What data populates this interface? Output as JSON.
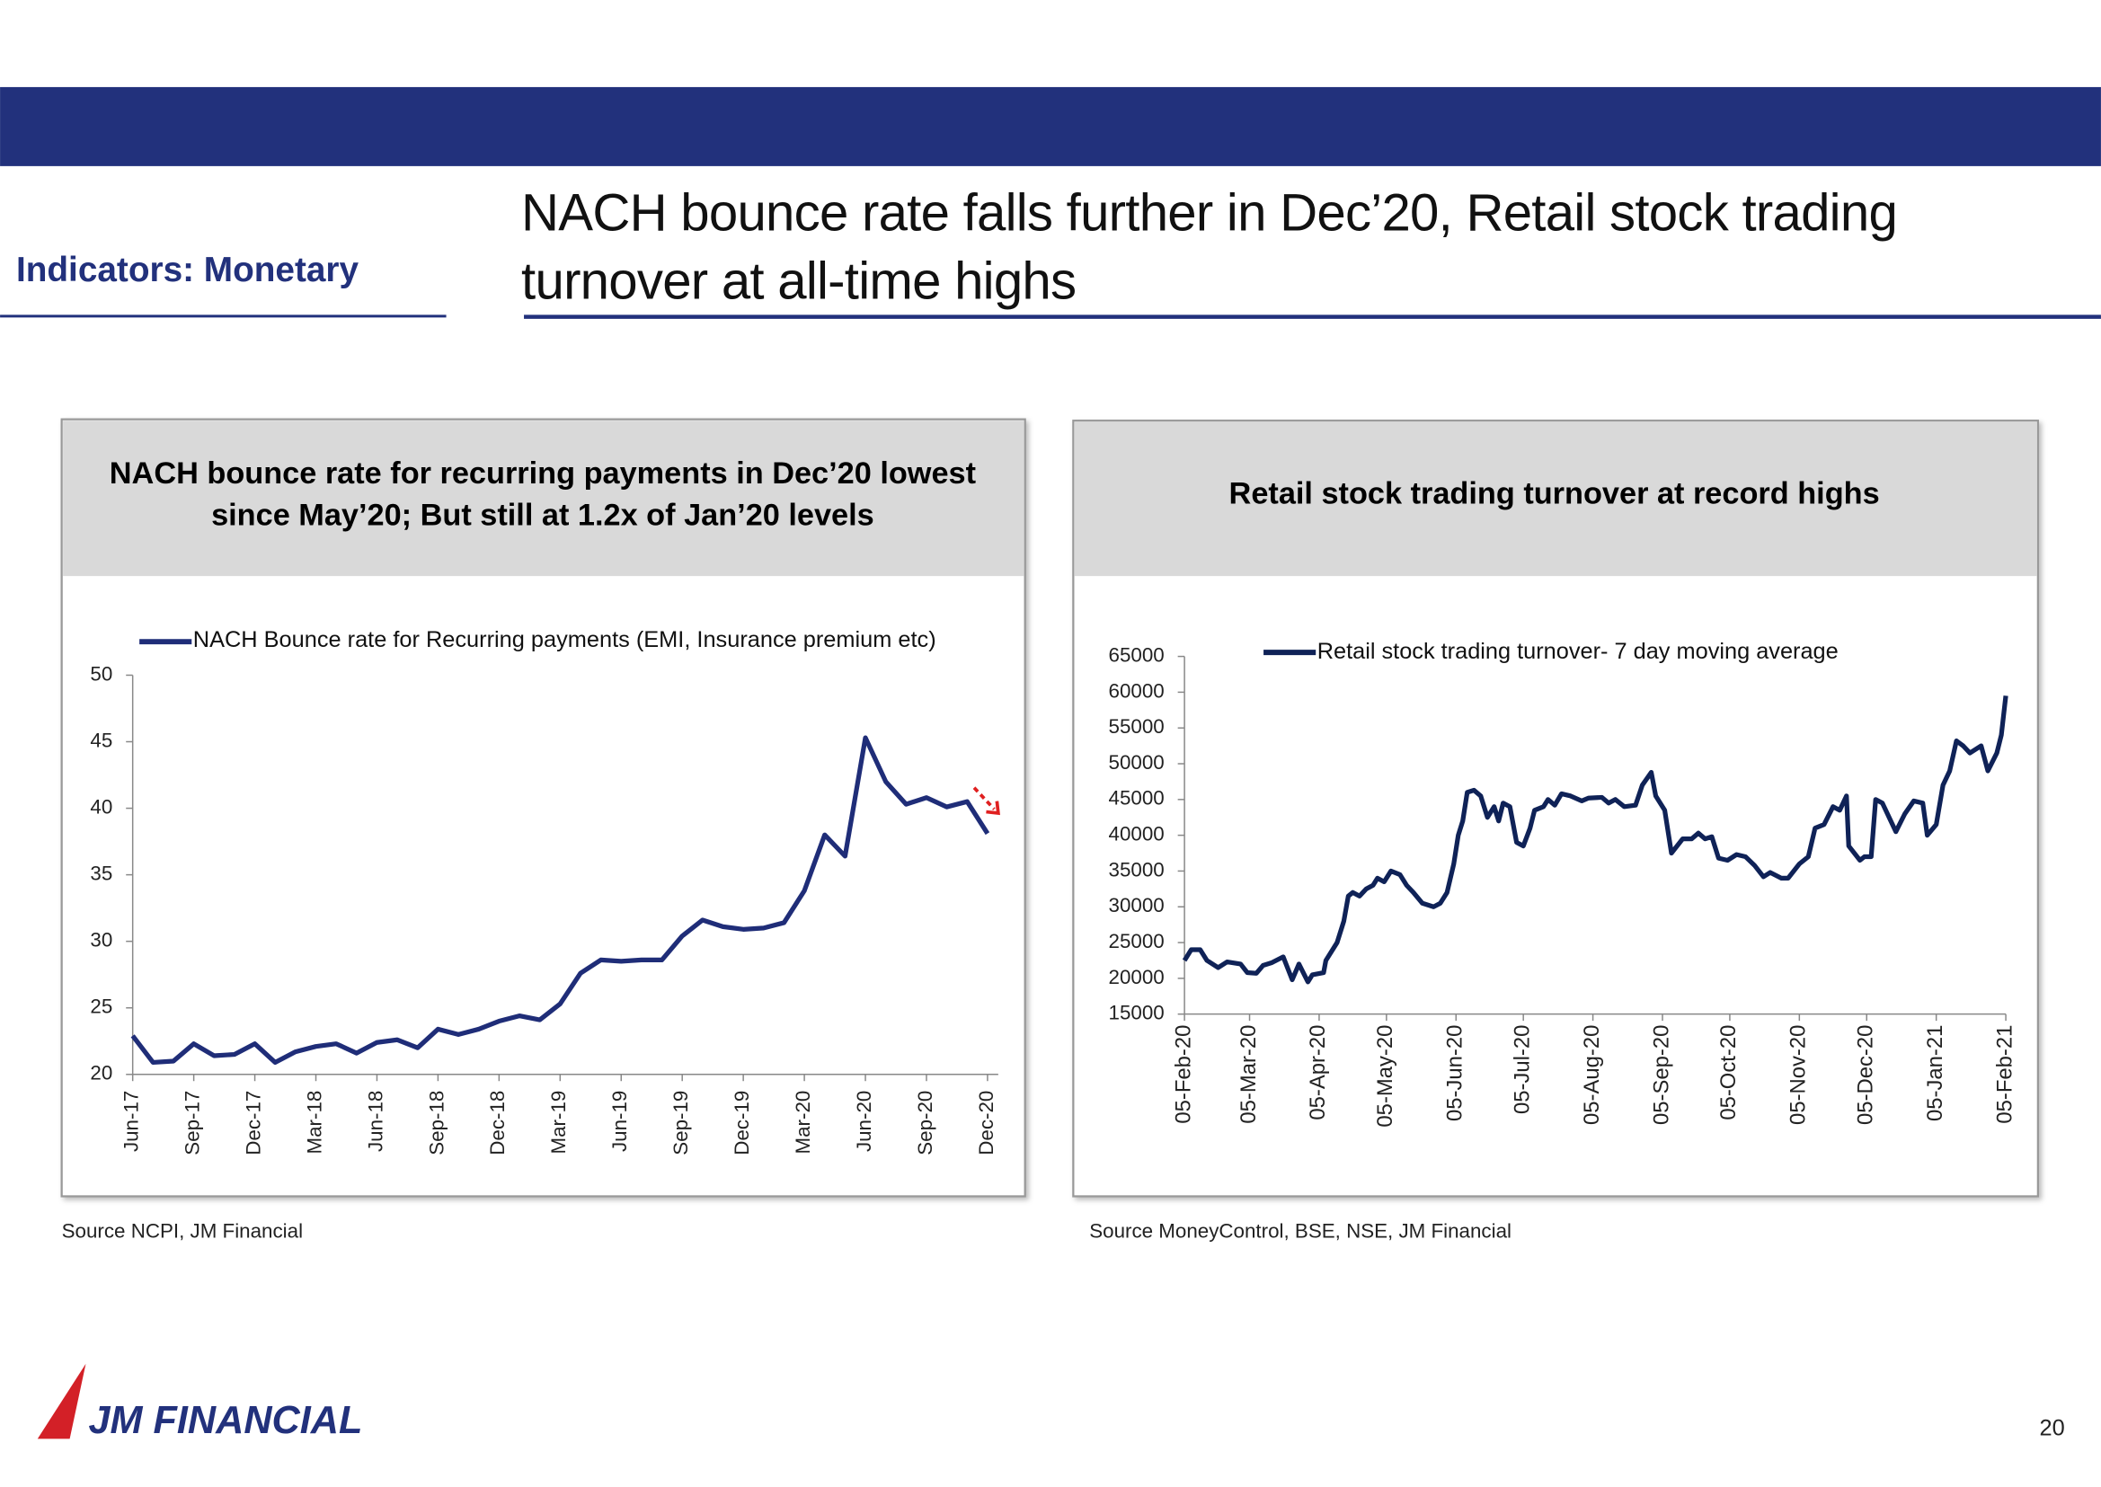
{
  "header": {
    "section": "Indicators: Monetary",
    "title": "NACH bounce rate falls further in Dec’20, Retail stock trading turnover at all-time highs"
  },
  "chart_data": [
    {
      "type": "line",
      "title": "NACH bounce rate for recurring payments in Dec’20 lowest since May’20; But still at 1.2x of Jan’20 levels",
      "categories": [
        "Jun-17",
        null,
        null,
        "Sep-17",
        null,
        null,
        "Dec-17",
        null,
        null,
        "Mar-18",
        null,
        null,
        "Jun-18",
        null,
        null,
        "Sep-18",
        null,
        null,
        "Dec-18",
        null,
        null,
        "Mar-19",
        null,
        null,
        "Jun-19",
        null,
        null,
        "Sep-19",
        null,
        null,
        "Dec-19",
        null,
        null,
        "Mar-20",
        null,
        null,
        "Jun-20",
        null,
        null,
        "Sep-20",
        null,
        null,
        "Dec-20"
      ],
      "series": [
        {
          "name": "NACH Bounce rate for Recurring payments (EMI, Insurance premium etc)",
          "color": "#1f2d78",
          "values": [
            22.9,
            20.9,
            21.0,
            22.3,
            21.4,
            21.5,
            22.3,
            20.9,
            21.7,
            22.1,
            22.3,
            21.6,
            22.4,
            22.6,
            22.0,
            23.4,
            23.0,
            23.4,
            24.0,
            24.4,
            24.1,
            25.3,
            27.6,
            28.6,
            28.5,
            28.6,
            28.6,
            30.4,
            31.6,
            31.1,
            30.9,
            31.0,
            31.4,
            33.8,
            38.0,
            36.4,
            45.3,
            42.0,
            40.3,
            40.8,
            40.1,
            40.5,
            38.1
          ]
        }
      ],
      "ylim": [
        20,
        50
      ],
      "yticks": [
        20,
        25,
        30,
        35,
        40,
        45,
        50
      ],
      "source": "Source NCPI, JM Financial"
    },
    {
      "type": "line",
      "title": "Retail stock trading turnover at record highs",
      "x": [
        "2020-02-05",
        "2020-02-08",
        "2020-02-12",
        "2020-02-15",
        "2020-02-20",
        "2020-02-24",
        "2020-03-01",
        "2020-03-04",
        "2020-03-08",
        "2020-03-11",
        "2020-03-15",
        "2020-03-20",
        "2020-03-24",
        "2020-03-27",
        "2020-03-31",
        "2020-04-02",
        "2020-04-07",
        "2020-04-08",
        "2020-04-13",
        "2020-04-16",
        "2020-04-18",
        "2020-04-20",
        "2020-04-23",
        "2020-04-26",
        "2020-04-29",
        "2020-05-01",
        "2020-05-04",
        "2020-05-07",
        "2020-05-11",
        "2020-05-14",
        "2020-05-17",
        "2020-05-21",
        "2020-05-26",
        "2020-05-29",
        "2020-06-01",
        "2020-06-04",
        "2020-06-06",
        "2020-06-08",
        "2020-06-10",
        "2020-06-13",
        "2020-06-16",
        "2020-06-19",
        "2020-06-22",
        "2020-06-24",
        "2020-06-26",
        "2020-06-29",
        "2020-07-02",
        "2020-07-05",
        "2020-07-08",
        "2020-07-10",
        "2020-07-14",
        "2020-07-16",
        "2020-07-19",
        "2020-07-22",
        "2020-07-26",
        "2020-07-31",
        "2020-08-03",
        "2020-08-09",
        "2020-08-12",
        "2020-08-15",
        "2020-08-19",
        "2020-08-24",
        "2020-08-27",
        "2020-08-31",
        "2020-09-02",
        "2020-09-06",
        "2020-09-09",
        "2020-09-14",
        "2020-09-18",
        "2020-09-21",
        "2020-09-24",
        "2020-09-27",
        "2020-09-30",
        "2020-10-04",
        "2020-10-08",
        "2020-10-12",
        "2020-10-16",
        "2020-10-20",
        "2020-10-23",
        "2020-10-28",
        "2020-10-31",
        "2020-11-05",
        "2020-11-09",
        "2020-11-12",
        "2020-11-16",
        "2020-11-20",
        "2020-11-23",
        "2020-11-26",
        "2020-11-27",
        "2020-12-02",
        "2020-12-04",
        "2020-12-07",
        "2020-12-09",
        "2020-12-12",
        "2020-12-15",
        "2020-12-18",
        "2020-12-22",
        "2020-12-26",
        "2020-12-30",
        "2021-01-01",
        "2021-01-05",
        "2021-01-08",
        "2021-01-11",
        "2021-01-14",
        "2021-01-17",
        "2021-01-20",
        "2021-01-25",
        "2021-01-28",
        "2021-02-01",
        "2021-02-03",
        "2021-02-05"
      ],
      "series": [
        {
          "name": "Retail stock trading turnover- 7 day moving average",
          "color": "#0f2257",
          "values": [
            22500,
            24000,
            24000,
            22500,
            21500,
            22300,
            22000,
            20800,
            20700,
            21800,
            22200,
            23000,
            19800,
            22000,
            19500,
            20500,
            20800,
            22500,
            25000,
            28000,
            31500,
            32000,
            31500,
            32500,
            33000,
            34000,
            33500,
            35000,
            34500,
            33000,
            32000,
            30500,
            30000,
            30500,
            32000,
            36000,
            40000,
            42000,
            46000,
            46300,
            45500,
            42500,
            44000,
            42000,
            44500,
            44000,
            39000,
            38500,
            41000,
            43500,
            44000,
            45000,
            44200,
            45800,
            45500,
            44800,
            45200,
            45300,
            44500,
            45000,
            44000,
            44200,
            47000,
            48800,
            45500,
            43500,
            37500,
            39500,
            39500,
            40300,
            39500,
            39800,
            36800,
            36500,
            37300,
            37000,
            35800,
            34200,
            34800,
            34000,
            34000,
            36000,
            37000,
            41000,
            41500,
            44000,
            43500,
            45500,
            38500,
            36500,
            37000,
            37000,
            45000,
            44500,
            42500,
            40500,
            43000,
            44800,
            44500,
            40000,
            41500,
            47000,
            49000,
            53200,
            52500,
            51500,
            52500,
            49000,
            51500,
            54000,
            59500
          ]
        }
      ],
      "xlim": [
        "2020-02-05",
        "2021-02-05"
      ],
      "xticks": [
        {
          "value": "2020-02-05",
          "label": "05-Feb-20"
        },
        {
          "value": "2020-03-05",
          "label": "05-Mar-20"
        },
        {
          "value": "2020-04-05",
          "label": "05-Apr-20"
        },
        {
          "value": "2020-05-05",
          "label": "05-May-20"
        },
        {
          "value": "2020-06-05",
          "label": "05-Jun-20"
        },
        {
          "value": "2020-07-05",
          "label": "05-Jul-20"
        },
        {
          "value": "2020-08-05",
          "label": "05-Aug-20"
        },
        {
          "value": "2020-09-05",
          "label": "05-Sep-20"
        },
        {
          "value": "2020-10-05",
          "label": "05-Oct-20"
        },
        {
          "value": "2020-11-05",
          "label": "05-Nov-20"
        },
        {
          "value": "2020-12-05",
          "label": "05-Dec-20"
        },
        {
          "value": "2021-01-05",
          "label": "05-Jan-21"
        },
        {
          "value": "2021-02-05",
          "label": "05-Feb-21"
        }
      ],
      "ylim": [
        15000,
        65000
      ],
      "yticks": [
        15000,
        20000,
        25000,
        30000,
        35000,
        40000,
        45000,
        50000,
        55000,
        60000,
        65000
      ],
      "source": "Source MoneyControl, BSE, NSE, JM Financial"
    }
  ],
  "footer": {
    "logo": "JM FINANCIAL",
    "page": "20"
  }
}
